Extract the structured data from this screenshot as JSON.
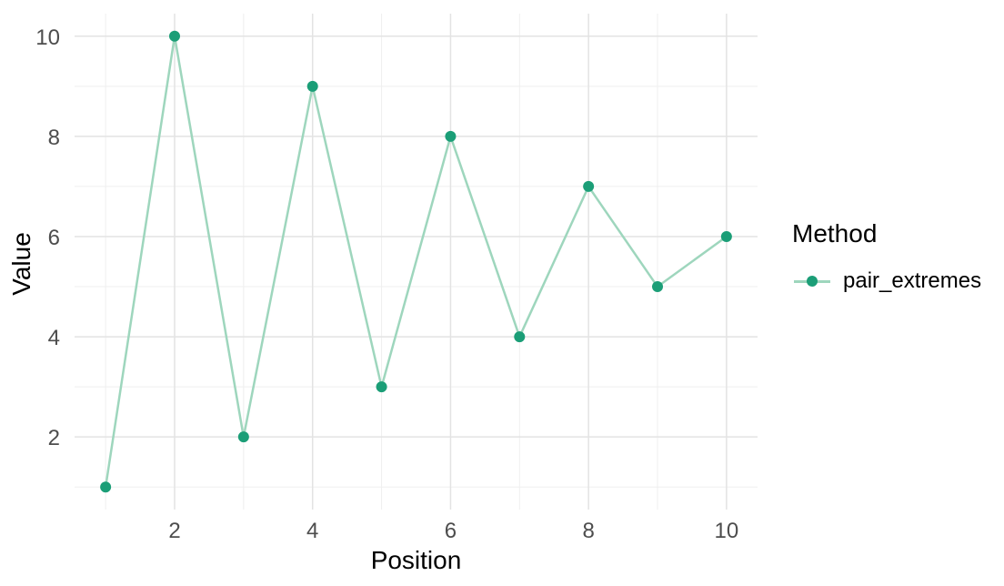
{
  "chart_data": {
    "type": "line",
    "title": "",
    "xlabel": "Position",
    "ylabel": "Value",
    "x": [
      1,
      2,
      3,
      4,
      5,
      6,
      7,
      8,
      9,
      10
    ],
    "series": [
      {
        "name": "pair_extremes",
        "values": [
          1,
          10,
          2,
          9,
          3,
          8,
          4,
          7,
          5,
          6
        ]
      }
    ],
    "x_ticks": [
      2,
      4,
      6,
      8,
      10
    ],
    "y_ticks": [
      2,
      4,
      6,
      8,
      10
    ],
    "x_minor_ticks": [
      1,
      3,
      5,
      7,
      9
    ],
    "y_minor_ticks": [
      1,
      3,
      5,
      7,
      9
    ],
    "xlim": [
      0.55,
      10.45
    ],
    "ylim": [
      0.55,
      10.45
    ],
    "grid": "on",
    "legend": {
      "title": "Method",
      "position": "right"
    },
    "colors": {
      "point": "#1b9e77",
      "line": "#9ed6bd",
      "grid_major": "#e3e3e3",
      "grid_minor": "#efefef",
      "tick_text": "#4d4d4d",
      "title_text": "#000000",
      "background": "#ffffff"
    }
  }
}
